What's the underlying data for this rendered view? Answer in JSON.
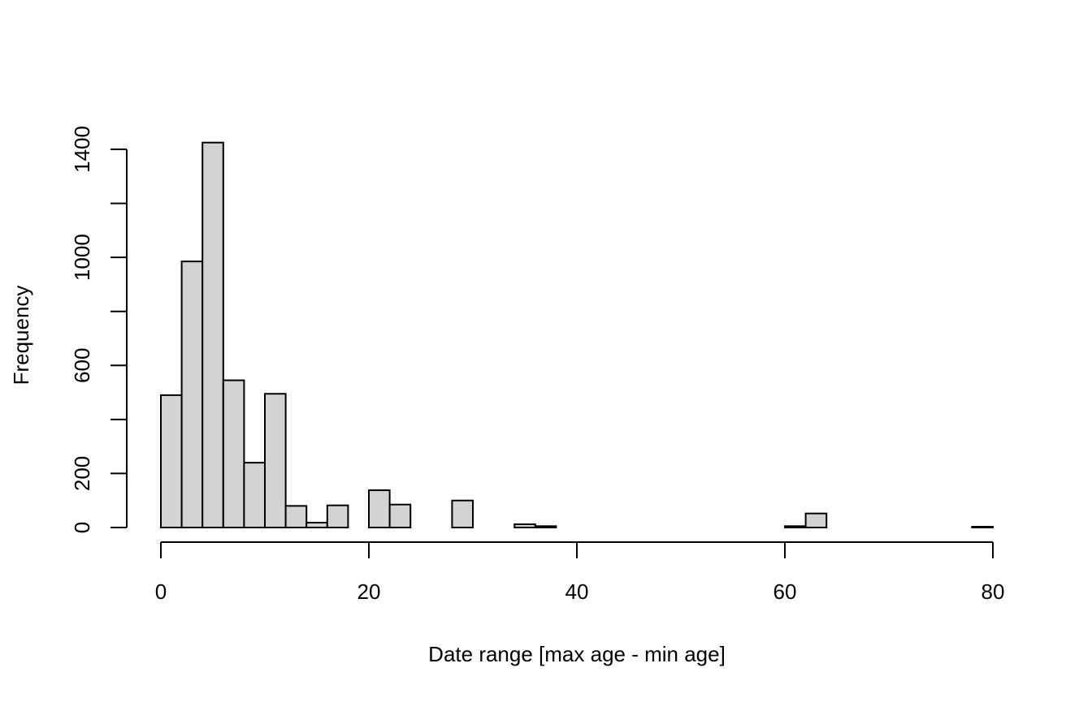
{
  "chart_data": {
    "type": "bar",
    "subtype": "histogram",
    "title": "",
    "xlabel": "Date range [max age - min age]",
    "ylabel": "Frequency",
    "bin_width": 2,
    "bins": [
      [
        0,
        2
      ],
      [
        2,
        4
      ],
      [
        4,
        6
      ],
      [
        6,
        8
      ],
      [
        8,
        10
      ],
      [
        10,
        12
      ],
      [
        12,
        14
      ],
      [
        14,
        16
      ],
      [
        16,
        18
      ],
      [
        18,
        20
      ],
      [
        20,
        22
      ],
      [
        22,
        24
      ],
      [
        24,
        26
      ],
      [
        26,
        28
      ],
      [
        28,
        30
      ],
      [
        30,
        32
      ],
      [
        32,
        34
      ],
      [
        34,
        36
      ],
      [
        36,
        38
      ],
      [
        38,
        40
      ],
      [
        40,
        42
      ],
      [
        42,
        44
      ],
      [
        44,
        46
      ],
      [
        46,
        48
      ],
      [
        48,
        50
      ],
      [
        50,
        52
      ],
      [
        52,
        54
      ],
      [
        54,
        56
      ],
      [
        56,
        58
      ],
      [
        58,
        60
      ],
      [
        60,
        62
      ],
      [
        62,
        64
      ],
      [
        64,
        66
      ],
      [
        66,
        68
      ],
      [
        68,
        70
      ],
      [
        70,
        72
      ],
      [
        72,
        74
      ],
      [
        74,
        76
      ],
      [
        76,
        78
      ],
      [
        78,
        80
      ]
    ],
    "values": [
      490,
      985,
      1425,
      545,
      240,
      495,
      80,
      18,
      82,
      0,
      138,
      85,
      0,
      0,
      100,
      0,
      0,
      12,
      5,
      0,
      0,
      0,
      0,
      0,
      0,
      0,
      0,
      0,
      0,
      0,
      5,
      52,
      0,
      0,
      0,
      0,
      0,
      0,
      0,
      3
    ],
    "xlim": [
      0,
      80
    ],
    "ylim": [
      0,
      1400
    ],
    "x_ticks": [
      0,
      20,
      40,
      60,
      80
    ],
    "x_tick_labels": [
      "0",
      "20",
      "40",
      "60",
      "80"
    ],
    "y_ticks": [
      0,
      200,
      400,
      600,
      800,
      1000,
      1200,
      1400
    ],
    "y_tick_labels": [
      "0",
      "200",
      "",
      "600",
      "",
      "1000",
      "",
      "1400"
    ],
    "grid": false,
    "legend": "none",
    "bar_fill": "#d3d3d3",
    "bar_stroke": "#000000"
  }
}
